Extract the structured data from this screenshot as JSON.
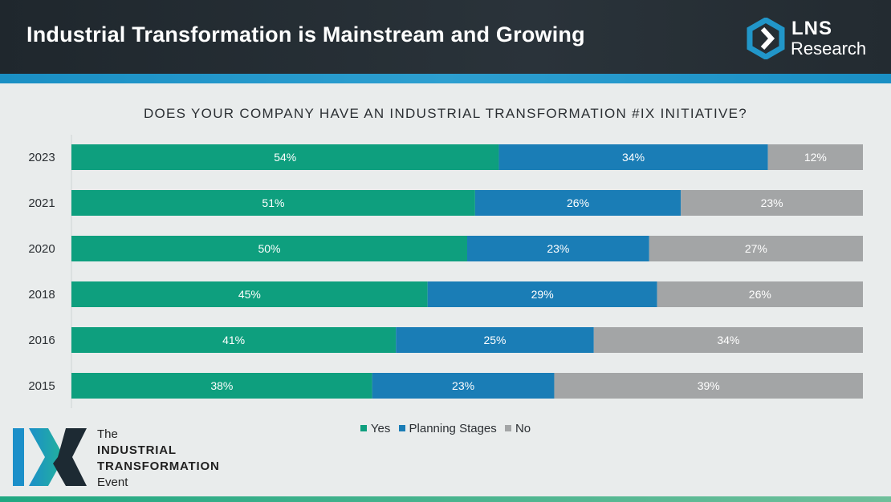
{
  "header": {
    "title": "Industrial Transformation is Mainstream and Growing",
    "logo_line1": "LNS",
    "logo_line2": "Research"
  },
  "colors": {
    "yes": "#0e9f7e",
    "planning": "#1a7db6",
    "no": "#a3a5a6",
    "accent": "#2196c9"
  },
  "chart_data": {
    "type": "bar",
    "orientation": "horizontal",
    "stacked": true,
    "title": "DOES YOUR COMPANY HAVE AN INDUSTRIAL TRANSFORMATION #IX INITIATIVE?",
    "categories": [
      "2023",
      "2021",
      "2020",
      "2018",
      "2016",
      "2015"
    ],
    "series": [
      {
        "name": "Yes",
        "values": [
          54,
          51,
          50,
          45,
          41,
          38
        ]
      },
      {
        "name": "Planning Stages",
        "values": [
          34,
          26,
          23,
          29,
          25,
          23
        ]
      },
      {
        "name": "No",
        "values": [
          12,
          23,
          27,
          26,
          34,
          39
        ]
      }
    ],
    "value_suffix": "%",
    "xlim": [
      0,
      100
    ],
    "xlabel": "",
    "ylabel": "",
    "legend_position": "bottom"
  },
  "footer": {
    "line1": "The",
    "line2": "INDUSTRIAL",
    "line3": "TRANSFORMATION",
    "line4": "Event"
  }
}
